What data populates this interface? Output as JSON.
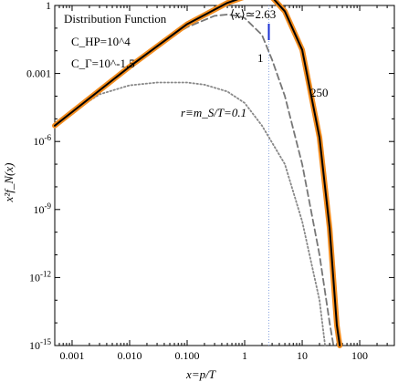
{
  "chart_data": {
    "type": "line",
    "xlabel": "x=p/T",
    "ylabel": "x²f_N(x)",
    "xscale": "log",
    "yscale": "log",
    "xlim": [
      0.0005,
      400
    ],
    "ylim": [
      1e-15,
      1
    ],
    "xticks": [
      {
        "value": 0.001,
        "label": "0.001"
      },
      {
        "value": 0.01,
        "label": "0.010"
      },
      {
        "value": 0.1,
        "label": "0.100"
      },
      {
        "value": 1,
        "label": "1"
      },
      {
        "value": 10,
        "label": "10"
      },
      {
        "value": 100,
        "label": "100"
      }
    ],
    "yticks": [
      {
        "value": 1,
        "label": "1"
      },
      {
        "value": 0.001,
        "label": "0.001"
      },
      {
        "value": 1e-06,
        "label": "10^-6"
      },
      {
        "value": 1e-09,
        "label": "10^-9"
      },
      {
        "value": 1e-12,
        "label": "10^-12"
      },
      {
        "value": 1e-15,
        "label": "10^-15"
      }
    ],
    "annotations": {
      "title": "Distribution Function",
      "param1": "C_HP=10^4",
      "param2": "C_Γ=10^-1.5",
      "mean": "⟨x⟩≃2.63",
      "mean_x": 2.63,
      "label_250": "250",
      "label_1": "1",
      "label_01": "r≡m_S/T=0.1"
    },
    "series": [
      {
        "name": "250",
        "color": "#000000",
        "style": "solid",
        "points": [
          [
            0.0005,
            5e-06
          ],
          [
            0.001,
            2e-05
          ],
          [
            0.01,
            0.002
          ],
          [
            0.1,
            0.15
          ],
          [
            0.5,
            1.3
          ],
          [
            1,
            2.4
          ],
          [
            1.5,
            3.0
          ],
          [
            2,
            2.9
          ],
          [
            3,
            2.3
          ],
          [
            5,
            0.55
          ],
          [
            10,
            0.011
          ],
          [
            20,
            1.5e-06
          ],
          [
            30,
            1.5e-10
          ],
          [
            40,
            8e-15
          ],
          [
            45,
            1e-15
          ]
        ]
      },
      {
        "name": "250 (orange)",
        "color": "#f28c1e",
        "style": "thick",
        "points": [
          [
            0.0005,
            5e-06
          ],
          [
            0.001,
            2e-05
          ],
          [
            0.01,
            0.002
          ],
          [
            0.1,
            0.15
          ],
          [
            0.5,
            1.3
          ],
          [
            1,
            2.4
          ],
          [
            1.5,
            3.0
          ],
          [
            2,
            2.9
          ],
          [
            3,
            2.3
          ],
          [
            5,
            0.55
          ],
          [
            10,
            0.011
          ],
          [
            20,
            1.5e-06
          ],
          [
            30,
            1.5e-10
          ],
          [
            40,
            8e-15
          ],
          [
            45,
            1e-15
          ]
        ]
      },
      {
        "name": "1",
        "color": "#777777",
        "style": "dashed",
        "points": [
          [
            0.0005,
            5e-06
          ],
          [
            0.001,
            2e-05
          ],
          [
            0.01,
            0.0018
          ],
          [
            0.05,
            0.04
          ],
          [
            0.1,
            0.11
          ],
          [
            0.3,
            0.35
          ],
          [
            0.5,
            0.4
          ],
          [
            0.8,
            0.34
          ],
          [
            1,
            0.28
          ],
          [
            2,
            0.05
          ],
          [
            3,
            0.004
          ],
          [
            5,
            0.0001
          ],
          [
            10,
            1e-07
          ],
          [
            20,
            1e-11
          ],
          [
            30,
            1e-14
          ],
          [
            35,
            1e-15
          ]
        ]
      },
      {
        "name": "r≡m_S/T=0.1",
        "color": "#888888",
        "style": "dotted",
        "points": [
          [
            0.0005,
            5e-06
          ],
          [
            0.001,
            2e-05
          ],
          [
            0.003,
            0.00012
          ],
          [
            0.01,
            0.0003
          ],
          [
            0.03,
            0.0004
          ],
          [
            0.1,
            0.0004
          ],
          [
            0.2,
            0.00032
          ],
          [
            0.5,
            0.00016
          ],
          [
            1,
            5e-05
          ],
          [
            2,
            5e-06
          ],
          [
            5,
            1e-07
          ],
          [
            10,
            3e-10
          ],
          [
            20,
            1e-13
          ],
          [
            25,
            1e-15
          ]
        ]
      }
    ]
  }
}
